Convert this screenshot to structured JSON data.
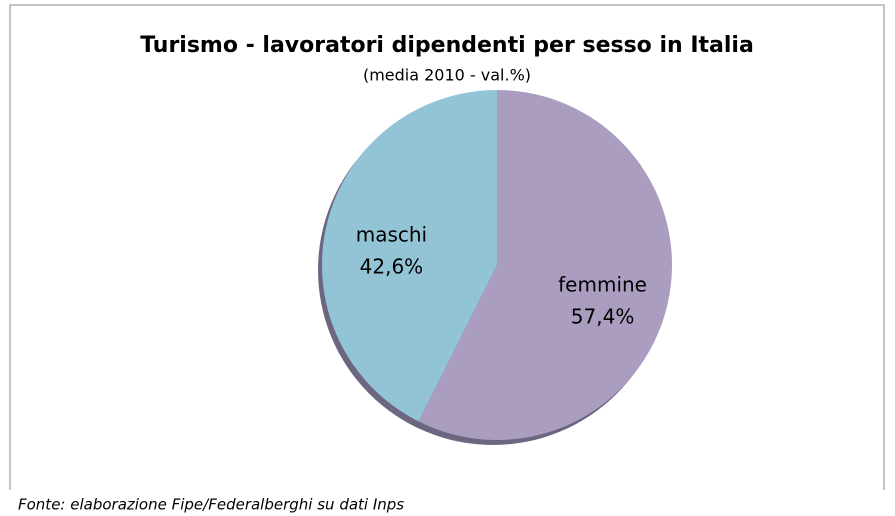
{
  "chart_data": {
    "type": "pie",
    "title": "Turismo - lavoratori dipendenti per sesso in Italia",
    "subtitle": "(media 2010 - val.%)",
    "categories": [
      "femmine",
      "maschi"
    ],
    "values": [
      57.4,
      42.6
    ],
    "value_labels": [
      "57,4%",
      "42,6%"
    ],
    "colors": [
      "#ab9dc0",
      "#92c4d6"
    ],
    "source": "Fonte: elaborazione Fipe/Federalberghi su dati Inps"
  }
}
